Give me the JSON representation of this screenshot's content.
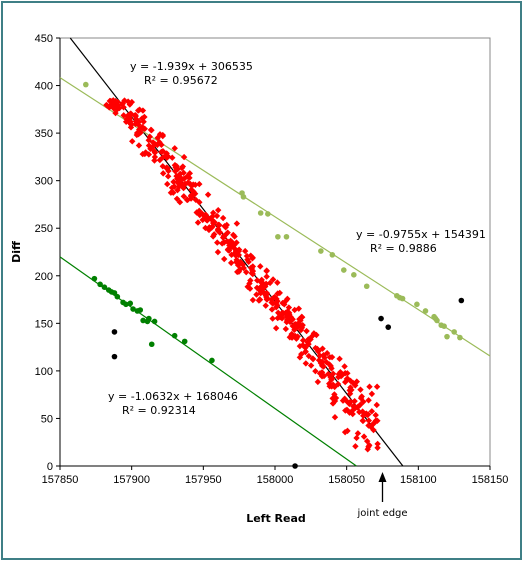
{
  "chart_data": {
    "type": "scatter",
    "title": "",
    "xlabel": "Left Read",
    "ylabel": "Diff",
    "xlim": [
      157850,
      158150
    ],
    "ylim": [
      0,
      450
    ],
    "x_ticks": [
      157850,
      157900,
      157950,
      158000,
      158050,
      158100,
      158150
    ],
    "y_ticks": [
      0,
      50,
      100,
      150,
      200,
      250,
      300,
      350,
      400,
      450
    ],
    "grid": false,
    "legend": "none",
    "series": [
      {
        "color": "#ff0000",
        "marker": "diamond",
        "generated": true,
        "x_range": [
          157882,
          158072
        ],
        "trendline": {
          "slope": -1.939,
          "intercept": 306535,
          "equation": "y = -1.939x + 306535",
          "r2": "R² = 0.95672"
        },
        "points": []
      },
      {
        "color": "#9bbb59",
        "marker": "circle",
        "trendline": {
          "slope": -0.9755,
          "intercept": 154391,
          "equation": "y = -0.9755x + 154391",
          "r2": "R² = 0.9886"
        },
        "points": [
          [
            157868,
            401
          ],
          [
            157977,
            287
          ],
          [
            157978,
            283
          ],
          [
            157990,
            266
          ],
          [
            157995,
            265
          ],
          [
            158002,
            241
          ],
          [
            158008,
            241
          ],
          [
            158032,
            226
          ],
          [
            158040,
            222
          ],
          [
            158048,
            206
          ],
          [
            158055,
            201
          ],
          [
            158064,
            189
          ],
          [
            158085,
            179
          ],
          [
            158087,
            177
          ],
          [
            158089,
            176
          ],
          [
            158099,
            170
          ],
          [
            158105,
            163
          ],
          [
            158111,
            157
          ],
          [
            158112,
            155
          ],
          [
            158113,
            153
          ],
          [
            158116,
            148
          ],
          [
            158118,
            147
          ],
          [
            158120,
            136
          ],
          [
            158125,
            141
          ],
          [
            158129,
            135
          ]
        ]
      },
      {
        "color": "#008000",
        "marker": "circle",
        "trendline": {
          "slope": -1.0632,
          "intercept": 168046,
          "equation": "y = -1.0632x + 168046",
          "r2": "R² = 0.92314"
        },
        "points": [
          [
            157874,
            197
          ],
          [
            157878,
            191
          ],
          [
            157881,
            188
          ],
          [
            157884,
            185
          ],
          [
            157886,
            183
          ],
          [
            157888,
            182
          ],
          [
            157890,
            178
          ],
          [
            157894,
            172
          ],
          [
            157896,
            170
          ],
          [
            157899,
            171
          ],
          [
            157901,
            165
          ],
          [
            157904,
            163
          ],
          [
            157906,
            164
          ],
          [
            157908,
            153
          ],
          [
            157911,
            152
          ],
          [
            157912,
            155
          ],
          [
            157914,
            128
          ],
          [
            157916,
            152
          ],
          [
            157930,
            137
          ],
          [
            157937,
            131
          ],
          [
            157956,
            111
          ]
        ]
      },
      {
        "color": "#000000",
        "marker": "circle",
        "points": [
          [
            157888,
            141
          ],
          [
            157888,
            115
          ],
          [
            158014,
            0
          ],
          [
            158074,
            155
          ],
          [
            158079,
            146
          ],
          [
            158130,
            174
          ]
        ]
      }
    ],
    "annotations": [
      {
        "text": "joint edge",
        "x": 158075,
        "arrow": "up"
      }
    ]
  }
}
